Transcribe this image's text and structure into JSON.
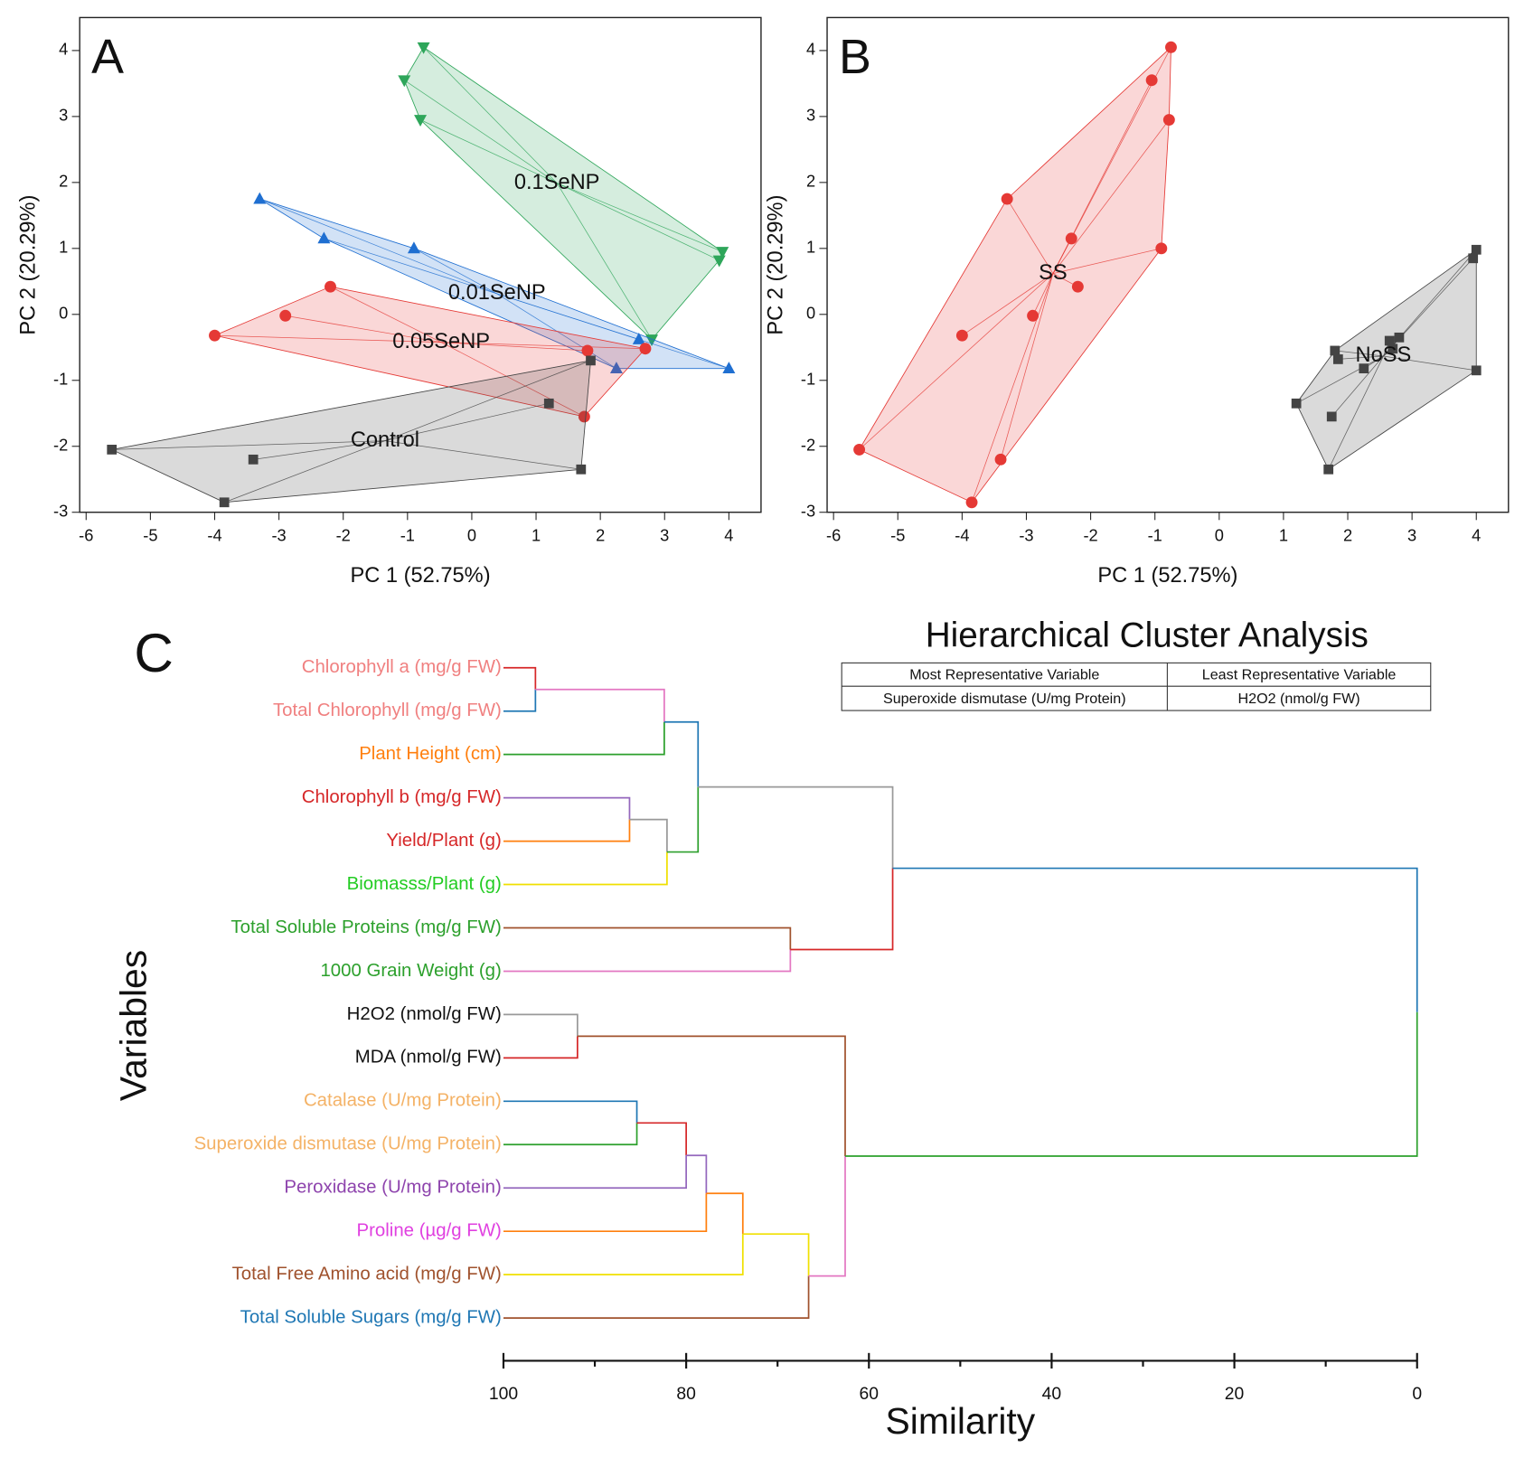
{
  "chart_data": [
    {
      "type": "scatter",
      "panel": "A",
      "xlabel": "PC 1 (52.75%)",
      "ylabel": "PC 2 (20.29%)",
      "xlim": [
        -6.1,
        4.5
      ],
      "ylim": [
        -3,
        4.5
      ],
      "xticks": [
        -6,
        -5,
        -4,
        -3,
        -2,
        -1,
        0,
        1,
        2,
        3,
        4
      ],
      "yticks": [
        -3,
        -2,
        -1,
        0,
        1,
        2,
        3,
        4
      ],
      "series": [
        {
          "name": "0.1SeNP",
          "color": "#2ea65a",
          "marker": "triangle-down",
          "x": [
            -0.75,
            -1.05,
            -0.8,
            3.9,
            3.85,
            2.8
          ],
          "y": [
            4.05,
            3.55,
            2.95,
            0.95,
            0.82,
            -0.38
          ]
        },
        {
          "name": "0.01SeNP",
          "color": "#1f6fd1",
          "marker": "triangle-up",
          "x": [
            -3.3,
            -2.3,
            -0.9,
            2.6,
            2.25,
            4.0
          ],
          "y": [
            1.75,
            1.15,
            1.0,
            -0.38,
            -0.82,
            -0.82
          ]
        },
        {
          "name": "0.05SeNP",
          "color": "#e53935",
          "marker": "circle",
          "x": [
            -2.2,
            -2.9,
            -4.0,
            1.8,
            2.7,
            1.75
          ],
          "y": [
            0.42,
            -0.02,
            -0.32,
            -0.55,
            -0.52,
            -1.55
          ]
        },
        {
          "name": "Control",
          "color": "#444444",
          "marker": "square",
          "x": [
            -5.6,
            -3.4,
            -3.85,
            1.2,
            1.85,
            1.7
          ],
          "y": [
            -2.05,
            -2.2,
            -2.85,
            -1.35,
            -0.7,
            -2.35
          ]
        }
      ]
    },
    {
      "type": "scatter",
      "panel": "B",
      "xlabel": "PC 1 (52.75%)",
      "ylabel": "PC 2 (20.29%)",
      "xlim": [
        -6.1,
        4.5
      ],
      "ylim": [
        -3,
        4.5
      ],
      "xticks": [
        -6,
        -5,
        -4,
        -3,
        -2,
        -1,
        0,
        1,
        2,
        3,
        4
      ],
      "yticks": [
        -3,
        -2,
        -1,
        0,
        1,
        2,
        3,
        4
      ],
      "series": [
        {
          "name": "SS",
          "color": "#e53935",
          "marker": "circle",
          "x": [
            -0.75,
            -1.05,
            -0.78,
            -3.3,
            -2.3,
            -0.9,
            -2.2,
            -2.9,
            -4.0,
            -5.6,
            -3.4,
            -3.85
          ],
          "y": [
            4.05,
            3.55,
            2.95,
            1.75,
            1.15,
            1.0,
            0.42,
            -0.02,
            -0.32,
            -2.05,
            -2.2,
            -2.85
          ]
        },
        {
          "name": "NoSS",
          "color": "#444444",
          "marker": "square",
          "x": [
            1.2,
            1.7,
            1.75,
            1.8,
            1.85,
            2.25,
            2.65,
            2.7,
            2.8,
            3.95,
            4.0,
            4.0
          ],
          "y": [
            -1.35,
            -2.35,
            -1.55,
            -0.55,
            -0.68,
            -0.82,
            -0.4,
            -0.52,
            -0.35,
            0.85,
            0.98,
            -0.85
          ]
        }
      ]
    },
    {
      "type": "dendrogram",
      "panel": "C",
      "title": "Hierarchical Cluster Analysis",
      "xlabel": "Similarity",
      "ylabel": "Variables",
      "xlim": [
        100,
        0
      ],
      "xticks": [
        100,
        80,
        60,
        40,
        20,
        0
      ],
      "xminorticks": [
        90,
        70,
        50,
        30,
        10
      ],
      "table": {
        "header": [
          "Most Representative Variable",
          "Least Representative Variable"
        ],
        "rows": [
          [
            "Superoxide dismutase (U/mg Protein)",
            "H2O2 (nmol/g FW)"
          ]
        ]
      },
      "leaves": [
        {
          "label": "Chlorophyll a (mg/g FW)",
          "color": "#f08080",
          "line_color": "#d62728"
        },
        {
          "label": "Total Chlorophyll  (mg/g FW)",
          "color": "#f08080",
          "line_color": "#1f77b4"
        },
        {
          "label": "Plant Height (cm)",
          "color": "#ff7f0e",
          "line_color": "#2ca02c"
        },
        {
          "label": "Chlorophyll b (mg/g FW)",
          "color": "#d62728",
          "line_color": "#9467bd"
        },
        {
          "label": "Yield/Plant (g)",
          "color": "#d62728",
          "line_color": "#ff7f0e"
        },
        {
          "label": "Biomasss/Plant (g)",
          "color": "#22cc22",
          "line_color": "#f0e000"
        },
        {
          "label": "Total Soluble Proteins (mg/g FW)",
          "color": "#2ca02c",
          "line_color": "#a0522d"
        },
        {
          "label": "1000 Grain Weight (g)",
          "color": "#2ca02c",
          "line_color": "#e377c2"
        },
        {
          "label": "H2O2 (nmol/g FW)",
          "color": "#111111",
          "line_color": "#999999"
        },
        {
          "label": "MDA (nmol/g FW)",
          "color": "#111111",
          "line_color": "#d62728"
        },
        {
          "label": "Catalase (U/mg Protein)",
          "color": "#f4b266",
          "line_color": "#1f77b4"
        },
        {
          "label": "Superoxide dismutase (U/mg Protein)",
          "color": "#f4b266",
          "line_color": "#2ca02c"
        },
        {
          "label": "Peroxidase (U/mg Protein)",
          "color": "#8e44ad",
          "line_color": "#9467bd"
        },
        {
          "label": "Proline (µg/g FW)",
          "color": "#e040e0",
          "line_color": "#ff7f0e"
        },
        {
          "label": "Total Free Amino acid (mg/g FW)",
          "color": "#a0522d",
          "line_color": "#f0e000"
        },
        {
          "label": "Total Soluble Sugars (mg/g FW)",
          "color": "#1f77b4",
          "line_color": "#a0522d"
        }
      ],
      "merges": [
        {
          "children": [
            0,
            1
          ],
          "similarity": 96.5,
          "color": "#e377c2"
        },
        {
          "children": [
            16,
            2
          ],
          "similarity": 82.4,
          "color": "#1f77b4"
        },
        {
          "children": [
            3,
            4
          ],
          "similarity": 86.2,
          "color": "#999999"
        },
        {
          "children": [
            18,
            5
          ],
          "similarity": 82.1,
          "color": "#2ca02c"
        },
        {
          "children": [
            17,
            19
          ],
          "similarity": 78.7,
          "color": "#999999"
        },
        {
          "children": [
            6,
            7
          ],
          "similarity": 68.6,
          "color": "#d62728"
        },
        {
          "children": [
            20,
            21
          ],
          "similarity": 57.4,
          "color": "#1f77b4"
        },
        {
          "children": [
            8,
            9
          ],
          "similarity": 91.9,
          "color": "#a0522d"
        },
        {
          "children": [
            10,
            11
          ],
          "similarity": 85.4,
          "color": "#d62728"
        },
        {
          "children": [
            24,
            12
          ],
          "similarity": 80.0,
          "color": "#9467bd"
        },
        {
          "children": [
            25,
            13
          ],
          "similarity": 77.8,
          "color": "#ff7f0e"
        },
        {
          "children": [
            26,
            14
          ],
          "similarity": 73.8,
          "color": "#f0e000"
        },
        {
          "children": [
            27,
            15
          ],
          "similarity": 66.6,
          "color": "#e377c2"
        },
        {
          "children": [
            23,
            28
          ],
          "similarity": 62.6,
          "color": "#2ca02c"
        },
        {
          "children": [
            22,
            29
          ],
          "similarity": 0.0,
          "color": "#1f77b4"
        }
      ]
    }
  ]
}
